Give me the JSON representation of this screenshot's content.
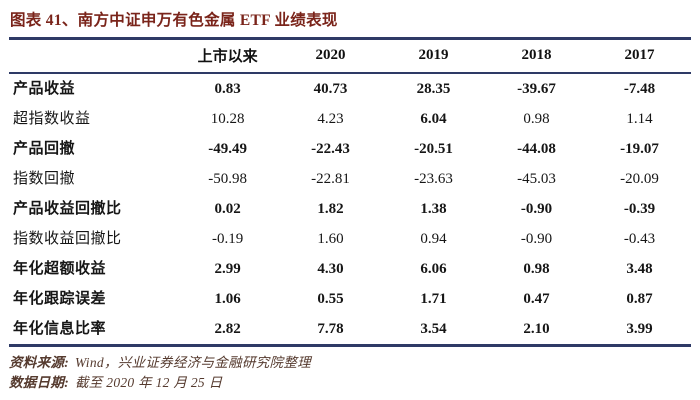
{
  "figure": {
    "title": "图表 41、南方中证申万有色金属 ETF 业绩表现"
  },
  "table": {
    "headers": [
      "上市以来",
      "2020",
      "2019",
      "2018",
      "2017"
    ],
    "rows": [
      {
        "label": "产品收益",
        "values": [
          "0.83",
          "40.73",
          "28.35",
          "-39.67",
          "-7.48"
        ]
      },
      {
        "label": "超指数收益",
        "values": [
          "10.28",
          "4.23",
          "6.04",
          "0.98",
          "1.14"
        ]
      },
      {
        "label": "产品回撤",
        "values": [
          "-49.49",
          "-22.43",
          "-20.51",
          "-44.08",
          "-19.07"
        ]
      },
      {
        "label": "指数回撤",
        "values": [
          "-50.98",
          "-22.81",
          "-23.63",
          "-45.03",
          "-20.09"
        ]
      },
      {
        "label": "产品收益回撤比",
        "values": [
          "0.02",
          "1.82",
          "1.38",
          "-0.90",
          "-0.39"
        ]
      },
      {
        "label": "指数收益回撤比",
        "values": [
          "-0.19",
          "1.60",
          "0.94",
          "-0.90",
          "-0.43"
        ]
      },
      {
        "label": "年化超额收益",
        "values": [
          "2.99",
          "4.30",
          "6.06",
          "0.98",
          "3.48"
        ]
      },
      {
        "label": "年化跟踪误差",
        "values": [
          "1.06",
          "0.55",
          "1.71",
          "0.47",
          "0.87"
        ]
      },
      {
        "label": "年化信息比率",
        "values": [
          "2.82",
          "7.78",
          "3.54",
          "2.10",
          "3.99"
        ]
      }
    ]
  },
  "footer": {
    "source_label": "资料来源:",
    "source_text": "Wind，兴业证券经济与金融研究院整理",
    "date_label": "数据日期:",
    "date_text": "截至 2020 年 12 月 25 日"
  },
  "colors": {
    "title_text": "#7a241a",
    "table_rule": "#2e3a66",
    "footer_text": "#553a2e",
    "body_text": "#161616"
  }
}
